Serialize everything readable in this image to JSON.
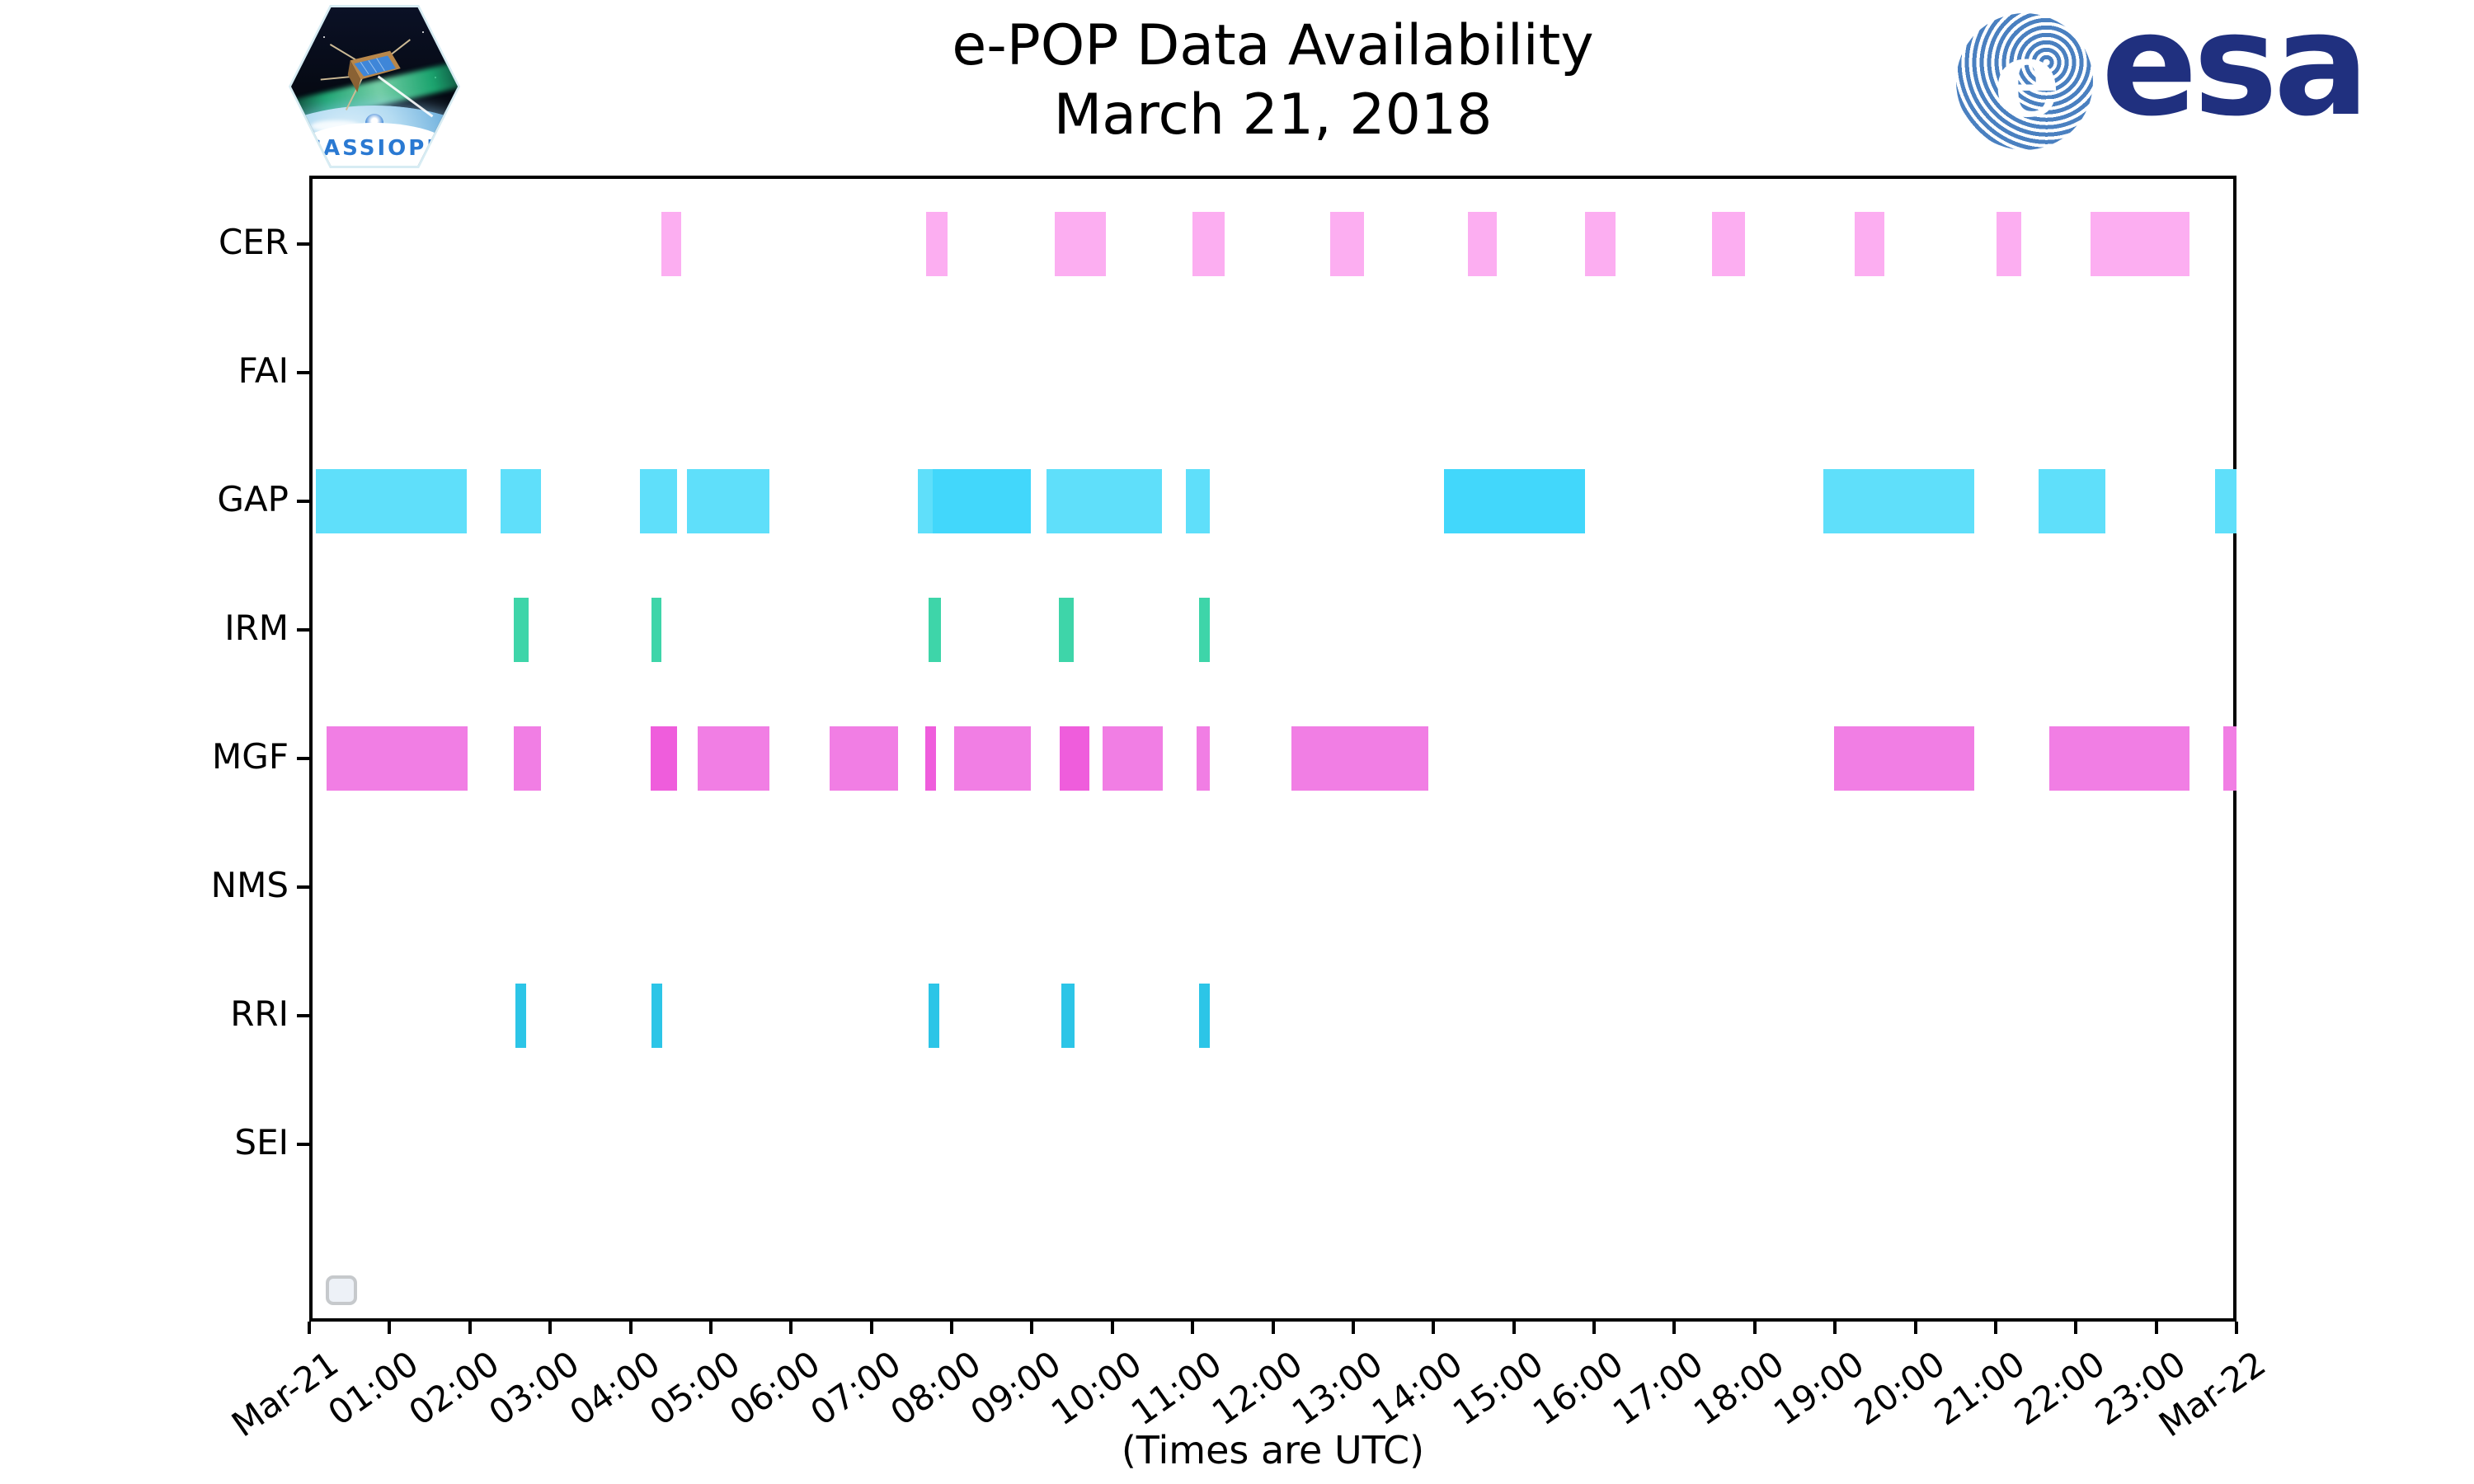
{
  "header": {
    "title": "e-POP Data Availability",
    "subtitle": "March 21, 2018"
  },
  "logos": {
    "cassiope_patch_label": "CASSIOPE",
    "esa_wordmark": "esa",
    "esa_globe_letter": "e",
    "esa_navy": "#20307f",
    "esa_globe_blue": "#4a80c0",
    "cassiope_label_blue": "#2a79d2"
  },
  "footer": {
    "caption": "(Times are UTC)"
  },
  "chart_data": {
    "type": "gantt",
    "title": "e-POP Data Availability",
    "subtitle": "March 21, 2018",
    "xlabel": "(Times are UTC)",
    "grid": false,
    "legend": "none (empty placeholder box at bottom-left)",
    "x_axis": {
      "start": "Mar-21 00:00 UTC",
      "end": "Mar-22 00:00 UTC",
      "tick_interval_hours": 1,
      "tick_labels": [
        "Mar-21",
        "01:00",
        "02:00",
        "03:00",
        "04:00",
        "05:00",
        "06:00",
        "07:00",
        "08:00",
        "09:00",
        "10:00",
        "11:00",
        "12:00",
        "13:00",
        "14:00",
        "15:00",
        "16:00",
        "17:00",
        "18:00",
        "19:00",
        "20:00",
        "21:00",
        "22:00",
        "23:00",
        "Mar-22"
      ]
    },
    "rows": [
      "CER",
      "FAI",
      "GAP",
      "IRM",
      "MGF",
      "NMS",
      "RRI",
      "SEI"
    ],
    "row_colors": {
      "CER": "#fcaef1",
      "FAI": "#ffffff",
      "GAP": "#5fdffa",
      "GAP_dark": "#42d7fb",
      "IRM": "#3ed5a9",
      "MGF": "#f17ee4",
      "MGF_dark": "#ef5ddc",
      "NMS": "#ffffff",
      "RRI": "#2cc5e7",
      "SEI": "#ffffff"
    },
    "intervals": [
      {
        "row": "CER",
        "start": "04:23",
        "end": "04:38",
        "shade": "normal"
      },
      {
        "row": "CER",
        "start": "07:41",
        "end": "07:57",
        "shade": "normal"
      },
      {
        "row": "CER",
        "start": "09:17",
        "end": "09:55",
        "shade": "normal"
      },
      {
        "row": "CER",
        "start": "11:00",
        "end": "11:24",
        "shade": "normal"
      },
      {
        "row": "CER",
        "start": "12:43",
        "end": "13:08",
        "shade": "normal"
      },
      {
        "row": "CER",
        "start": "14:26",
        "end": "14:47",
        "shade": "normal"
      },
      {
        "row": "CER",
        "start": "15:53",
        "end": "16:16",
        "shade": "normal"
      },
      {
        "row": "CER",
        "start": "17:28",
        "end": "17:53",
        "shade": "normal"
      },
      {
        "row": "CER",
        "start": "19:15",
        "end": "19:37",
        "shade": "normal"
      },
      {
        "row": "CER",
        "start": "21:01",
        "end": "21:19",
        "shade": "normal"
      },
      {
        "row": "CER",
        "start": "22:11",
        "end": "23:25",
        "shade": "normal"
      },
      {
        "row": "GAP",
        "start": "00:05",
        "end": "01:58",
        "shade": "normal"
      },
      {
        "row": "GAP",
        "start": "02:23",
        "end": "02:53",
        "shade": "normal"
      },
      {
        "row": "GAP",
        "start": "04:07",
        "end": "04:35",
        "shade": "normal"
      },
      {
        "row": "GAP",
        "start": "04:42",
        "end": "05:44",
        "shade": "normal"
      },
      {
        "row": "GAP",
        "start": "07:35",
        "end": "07:46",
        "shade": "normal"
      },
      {
        "row": "GAP",
        "start": "07:46",
        "end": "08:59",
        "shade": "dark"
      },
      {
        "row": "GAP",
        "start": "09:11",
        "end": "10:37",
        "shade": "normal"
      },
      {
        "row": "GAP",
        "start": "10:55",
        "end": "11:13",
        "shade": "normal"
      },
      {
        "row": "GAP",
        "start": "14:08",
        "end": "15:53",
        "shade": "dark"
      },
      {
        "row": "GAP",
        "start": "18:51",
        "end": "20:44",
        "shade": "normal"
      },
      {
        "row": "GAP",
        "start": "21:32",
        "end": "22:22",
        "shade": "normal"
      },
      {
        "row": "GAP",
        "start": "23:44",
        "end": "24:00",
        "shade": "normal"
      },
      {
        "row": "IRM",
        "start": "02:33",
        "end": "02:44",
        "shade": "normal"
      },
      {
        "row": "IRM",
        "start": "04:16",
        "end": "04:23",
        "shade": "normal"
      },
      {
        "row": "IRM",
        "start": "07:43",
        "end": "07:52",
        "shade": "normal"
      },
      {
        "row": "IRM",
        "start": "09:20",
        "end": "09:31",
        "shade": "normal"
      },
      {
        "row": "IRM",
        "start": "11:05",
        "end": "11:13",
        "shade": "normal"
      },
      {
        "row": "MGF",
        "start": "00:13",
        "end": "01:58",
        "shade": "normal"
      },
      {
        "row": "MGF",
        "start": "02:33",
        "end": "02:53",
        "shade": "normal"
      },
      {
        "row": "MGF",
        "start": "04:15",
        "end": "04:35",
        "shade": "dark"
      },
      {
        "row": "MGF",
        "start": "04:50",
        "end": "05:44",
        "shade": "normal"
      },
      {
        "row": "MGF",
        "start": "06:29",
        "end": "07:20",
        "shade": "normal"
      },
      {
        "row": "MGF",
        "start": "07:40",
        "end": "07:48",
        "shade": "dark"
      },
      {
        "row": "MGF",
        "start": "08:02",
        "end": "08:59",
        "shade": "normal"
      },
      {
        "row": "MGF",
        "start": "09:21",
        "end": "09:43",
        "shade": "dark"
      },
      {
        "row": "MGF",
        "start": "09:53",
        "end": "10:38",
        "shade": "normal"
      },
      {
        "row": "MGF",
        "start": "11:03",
        "end": "11:13",
        "shade": "normal"
      },
      {
        "row": "MGF",
        "start": "12:14",
        "end": "13:56",
        "shade": "normal"
      },
      {
        "row": "MGF",
        "start": "18:59",
        "end": "20:44",
        "shade": "normal"
      },
      {
        "row": "MGF",
        "start": "21:40",
        "end": "23:25",
        "shade": "normal"
      },
      {
        "row": "MGF",
        "start": "23:50",
        "end": "24:00",
        "shade": "normal"
      },
      {
        "row": "RRI",
        "start": "02:34",
        "end": "02:42",
        "shade": "normal"
      },
      {
        "row": "RRI",
        "start": "04:16",
        "end": "04:24",
        "shade": "normal"
      },
      {
        "row": "RRI",
        "start": "07:43",
        "end": "07:51",
        "shade": "normal"
      },
      {
        "row": "RRI",
        "start": "09:22",
        "end": "09:32",
        "shade": "normal"
      },
      {
        "row": "RRI",
        "start": "11:05",
        "end": "11:13",
        "shade": "normal"
      }
    ]
  }
}
